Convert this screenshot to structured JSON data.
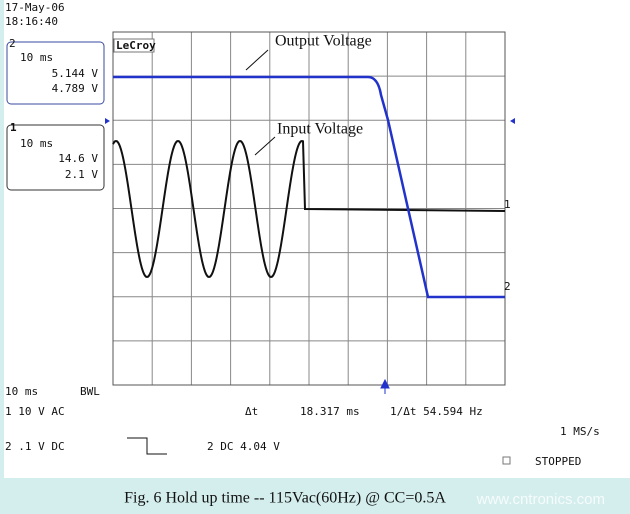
{
  "header": {
    "date": "17-May-06",
    "time": "18:16:40"
  },
  "channel_boxes": [
    {
      "channel": "2",
      "timebase": "10 ms",
      "line1": "5.144 V",
      "line2": "4.789 V"
    },
    {
      "channel": "1",
      "timebase": "10 ms",
      "line1": "14.6 V",
      "line2": "2.1 V"
    }
  ],
  "brand": "LeCroy",
  "annotations": [
    "Output Voltage",
    "Input Voltage"
  ],
  "trace_markers": [
    "1",
    "2"
  ],
  "readouts": {
    "timebase": "10 ms",
    "bwl": "BWL",
    "ch1": "1 10  V AC",
    "ch2": "2 .1  V DC",
    "delta_t_label": "Δt",
    "delta_t": "18.317 ms",
    "inv_delta_t": "1/Δt 54.594 Hz",
    "sample_rate": "1 MS/s",
    "trigger": "2 DC 4.04 V",
    "status": "STOPPED"
  },
  "caption": "Fig. 6  Hold up time  -- 115Vac(60Hz) @ CC=0.5A",
  "watermark": "www.cntronics.com"
}
